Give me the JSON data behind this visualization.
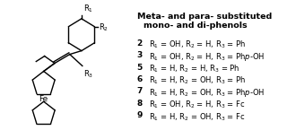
{
  "title_line1": "Meta- and para- substituted",
  "title_line2": "mono- and di-phenols",
  "compounds": [
    {
      "num": "2",
      "text": "R$_1$ = OH, R$_2$ = H, R$_3$ = Ph"
    },
    {
      "num": "3",
      "text": "R$_1$ = OH, R$_2$ = H, R$_3$ = Phρ-OH"
    },
    {
      "num": "5",
      "text": "R$_1$ = H, R$_2$ = H, R$_3$ = Ph"
    },
    {
      "num": "6",
      "text": "R$_1$ = H, R$_2$ = OH, R$_3$ = Ph"
    },
    {
      "num": "7",
      "text": "R$_1$ = H, R$_2$ = OH, R$_3$ = Phρ-OH"
    },
    {
      "num": "8",
      "text": "R$_1$ = OH, R$_2$ = H, R$_3$ = Fc"
    },
    {
      "num": "9",
      "text": "R$_1$ = H, R$_2$ = OH, R$_3$ = Fc"
    }
  ],
  "bg_color": "#ffffff",
  "text_color": "#000000"
}
